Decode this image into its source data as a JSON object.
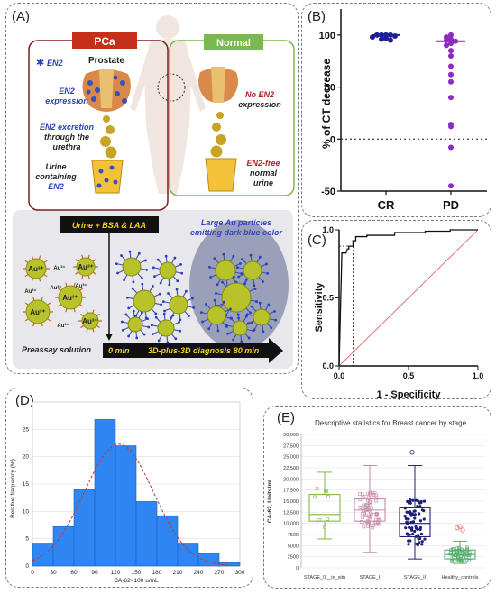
{
  "panels": {
    "A": {
      "tag": "(A)",
      "pca_label": "PCa",
      "normal_label": "Normal",
      "en2_legend": "EN2",
      "prostate_label": "Prostate",
      "en2_expression": [
        "EN2",
        "expression"
      ],
      "no_en2_expression": [
        "No EN2",
        "expression"
      ],
      "excretion": [
        "EN2 excretion",
        "through the",
        "urethra"
      ],
      "urine_containing": [
        "Urine",
        "containing",
        "EN2"
      ],
      "en2_free": [
        "EN2-free",
        "normal",
        "urine"
      ],
      "urine_bsa_laa": "Urine + BSA & LAA",
      "large_au": [
        "Large Au particles",
        "emitting dark blue color"
      ],
      "preassay": "Preassay solution",
      "timeline_start": "0 min",
      "timeline_mid": "3D-plus-3D diagnosis",
      "timeline_end": "80 min",
      "ion_label": "Au³⁺"
    },
    "B": {
      "tag": "(B)",
      "ylabel": "% of CT decrease",
      "categories": [
        "CR",
        "PD"
      ],
      "yticks": [
        "100",
        "50",
        "0",
        "-50"
      ]
    },
    "C": {
      "tag": "(C)",
      "ylabel": "Sensitivity",
      "xlabel": "1 - Specificity",
      "xticks": [
        "0.0",
        "0.5",
        "1.0"
      ],
      "yticks": [
        "1.0",
        "0.5",
        "0.0"
      ]
    },
    "D": {
      "tag": "(D)",
      "ylabel": "Relative frequency (%)",
      "xlabel": "CA-62×100 u/mL",
      "yticks": [
        "0",
        "5",
        "10",
        "15",
        "20",
        "25"
      ],
      "xticks": [
        "0",
        "30",
        "60",
        "90",
        "120",
        "150",
        "180",
        "210",
        "240",
        "270",
        "300"
      ]
    },
    "E": {
      "tag": "(E)",
      "title": "Descriptive statistics for Breast cancer by stage",
      "ylabel": "CA-62, Units/mL",
      "yticks": [
        "0",
        "2500",
        "5000",
        "7500",
        "10,000",
        "12,500",
        "15,000",
        "17,500",
        "20,000",
        "22,500",
        "25,000",
        "27,500",
        "30,000"
      ],
      "categories": [
        "STAGE_0__in_situ",
        "STAGE_I",
        "STAGE_II",
        "Healthy_controls"
      ]
    }
  },
  "colors": {
    "pca": "#d93a1e",
    "normal": "#79b94f",
    "dark_purple": "#7a1e96",
    "cr_dots": "#1e1e9a",
    "pd_dots": "#8a2bc4",
    "hist_bar": "#2f86f2",
    "normal_curve": "#c0392b",
    "roc_diag": "#e05555",
    "stage0": "#7fb93d",
    "stage1": "#c48aa8",
    "stage2": "#1f1f7a",
    "healthy": "#4fae6a",
    "healthy_outlier": "#e07060"
  },
  "chart_data": [
    {
      "type": "scatter",
      "title": "",
      "ylabel": "% of CT decrease",
      "categories": [
        "CR",
        "PD"
      ],
      "ylim": [
        -50,
        125
      ],
      "series": [
        {
          "name": "CR",
          "values": [
            100,
            100,
            100,
            100,
            99,
            98,
            97,
            96,
            95
          ]
        },
        {
          "name": "PD",
          "values": [
            100,
            98,
            96,
            95,
            94,
            92,
            90,
            85,
            80,
            70,
            62,
            55,
            40,
            14,
            12,
            -8,
            -45
          ]
        }
      ],
      "median": {
        "CR": 100,
        "PD": 94
      },
      "reference_line": 0
    },
    {
      "type": "line",
      "title": "",
      "xlabel": "1 - Specificity",
      "ylabel": "Sensitivity",
      "xlim": [
        0,
        1
      ],
      "ylim": [
        0,
        1
      ],
      "series": [
        {
          "x": [
            0,
            0.02,
            0.03,
            0.05,
            0.06,
            0.07,
            0.07,
            0.1,
            0.1,
            0.12,
            0.12,
            0.2,
            0.2,
            0.4,
            0.4,
            0.62,
            0.62,
            0.8,
            0.8,
            1.0
          ],
          "y": [
            0,
            0.83,
            0.83,
            0.83,
            0.86,
            0.86,
            0.88,
            0.88,
            0.92,
            0.92,
            0.95,
            0.95,
            0.96,
            0.96,
            0.98,
            0.98,
            0.99,
            0.99,
            1.0,
            1.0
          ]
        }
      ],
      "diagonal": true,
      "cutoff": {
        "x": 0.1,
        "y": 0.88
      }
    },
    {
      "type": "bar",
      "title": "",
      "xlabel": "CA-62×100 u/mL",
      "ylabel": "Relative frequency (%)",
      "bin_edges": [
        0,
        30,
        60,
        90,
        120,
        150,
        180,
        210,
        240,
        270,
        300
      ],
      "values": [
        4.2,
        7.2,
        14,
        26.8,
        22,
        11.8,
        9.2,
        4.2,
        2.3,
        0.6
      ],
      "ylim": [
        0,
        30
      ],
      "xlim": [
        0,
        300
      ],
      "normal_curve": {
        "mean": 125,
        "sd": 50,
        "peak": 22.3
      }
    },
    {
      "type": "box",
      "title": "Descriptive statistics for Breast cancer by stage",
      "ylabel": "CA-62, Units/mL",
      "ylim": [
        0,
        30000
      ],
      "categories": [
        "STAGE_0__in_situ",
        "STAGE_I",
        "STAGE_II",
        "Healthy_controls"
      ],
      "boxes": [
        {
          "min": 6500,
          "q1": 10500,
          "median": 12000,
          "q3": 16500,
          "max": 21500
        },
        {
          "min": 3500,
          "q1": 10500,
          "median": 13000,
          "q3": 15500,
          "max": 23000
        },
        {
          "min": 2000,
          "q1": 7000,
          "median": 10000,
          "q3": 13500,
          "max": 23000,
          "outliers": [
            26000
          ]
        },
        {
          "min": 1000,
          "q1": 2000,
          "median": 3000,
          "q3": 4000,
          "max": 6000,
          "outliers": [
            9000,
            9300,
            8500
          ]
        }
      ]
    }
  ]
}
